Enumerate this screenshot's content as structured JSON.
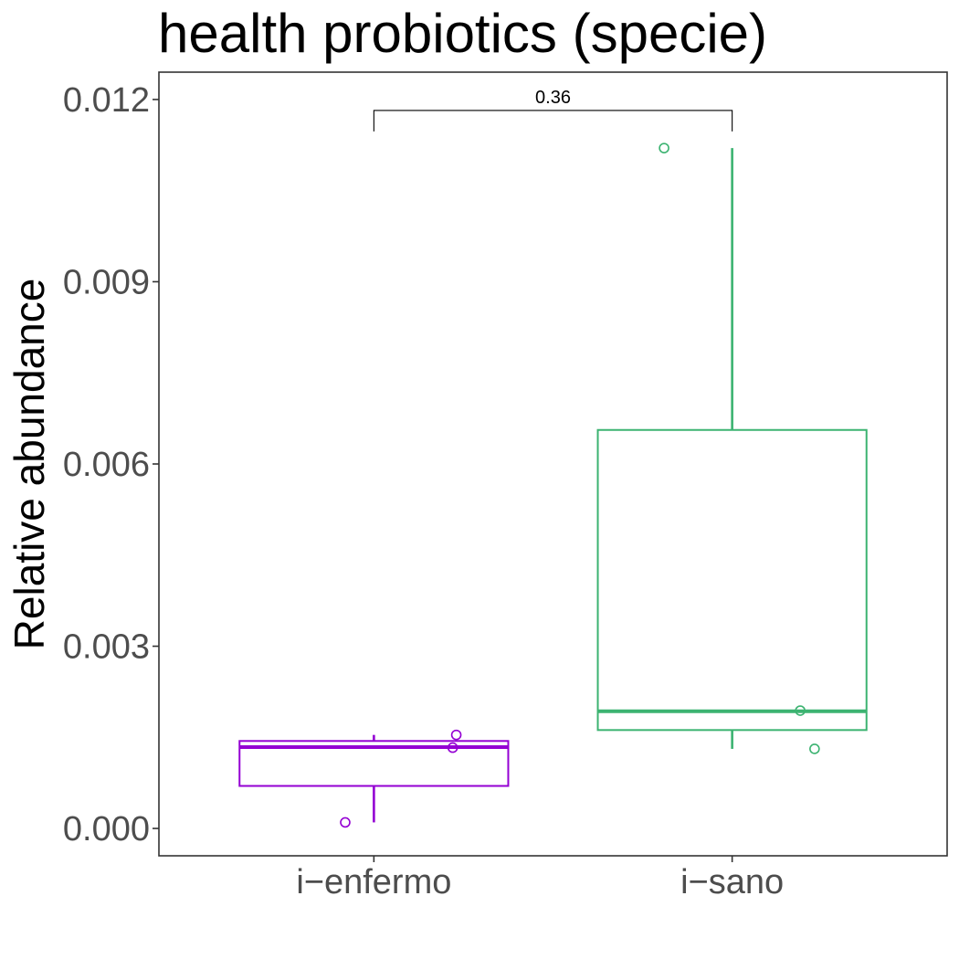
{
  "chart_data": {
    "type": "box",
    "title": "health probiotics (specie)",
    "ylabel": "Relative abundance",
    "xlabel": "",
    "ylim": [
      -0.00045,
      0.01245
    ],
    "yticks": [
      0.0,
      0.003,
      0.006,
      0.009,
      0.012
    ],
    "ytick_labels": [
      "0.000",
      "0.003",
      "0.006",
      "0.009",
      "0.012"
    ],
    "grid": false,
    "legend": "none",
    "categories": [
      "i−enfermo",
      "i−sano"
    ],
    "groups": [
      {
        "category": "i−enfermo",
        "color": "#9400d3",
        "whisker_low": 0.0001,
        "q1": 0.0007,
        "median": 0.00134,
        "q3": 0.00144,
        "whisker_high": 0.00154,
        "points": [
          {
            "offset": -0.08,
            "y": 0.0001
          },
          {
            "offset": 0.23,
            "y": 0.00154
          },
          {
            "offset": 0.22,
            "y": 0.00133
          }
        ]
      },
      {
        "category": "i−sano",
        "color": "#3cb371",
        "whisker_low": 0.00131,
        "q1": 0.00162,
        "median": 0.00193,
        "q3": 0.00656,
        "whisker_high": 0.0112,
        "points": [
          {
            "offset": -0.19,
            "y": 0.0112
          },
          {
            "offset": 0.19,
            "y": 0.00194
          },
          {
            "offset": 0.23,
            "y": 0.00131
          }
        ]
      }
    ],
    "comparison": {
      "from": "i−enfermo",
      "to": "i−sano",
      "label": "0.36",
      "y": 0.01182
    }
  }
}
